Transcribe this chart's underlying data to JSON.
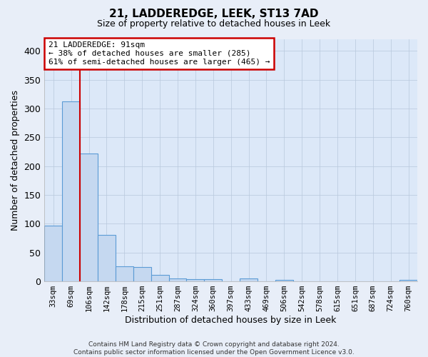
{
  "title1": "21, LADDEREDGE, LEEK, ST13 7AD",
  "title2": "Size of property relative to detached houses in Leek",
  "xlabel": "Distribution of detached houses by size in Leek",
  "ylabel": "Number of detached properties",
  "categories": [
    "33sqm",
    "69sqm",
    "106sqm",
    "142sqm",
    "178sqm",
    "215sqm",
    "251sqm",
    "287sqm",
    "324sqm",
    "360sqm",
    "397sqm",
    "433sqm",
    "469sqm",
    "506sqm",
    "542sqm",
    "578sqm",
    "615sqm",
    "651sqm",
    "687sqm",
    "724sqm",
    "760sqm"
  ],
  "values": [
    97,
    312,
    222,
    81,
    26,
    25,
    11,
    5,
    4,
    4,
    0,
    5,
    0,
    3,
    0,
    0,
    0,
    0,
    0,
    0,
    3
  ],
  "bar_color": "#c5d8f0",
  "bar_edge_color": "#5b9bd5",
  "vline_x_index": 1.5,
  "vline_color": "#cc0000",
  "annotation_line1": "21 LADDEREDGE: 91sqm",
  "annotation_line2": "← 38% of detached houses are smaller (285)",
  "annotation_line3": "61% of semi-detached houses are larger (465) →",
  "annotation_box_color": "#ffffff",
  "annotation_box_edge_color": "#cc0000",
  "ylim": [
    0,
    420
  ],
  "yticks": [
    0,
    50,
    100,
    150,
    200,
    250,
    300,
    350,
    400
  ],
  "footer": "Contains HM Land Registry data © Crown copyright and database right 2024.\nContains public sector information licensed under the Open Government Licence v3.0.",
  "bg_color": "#e8eef8",
  "plot_bg_color": "#dce8f8"
}
